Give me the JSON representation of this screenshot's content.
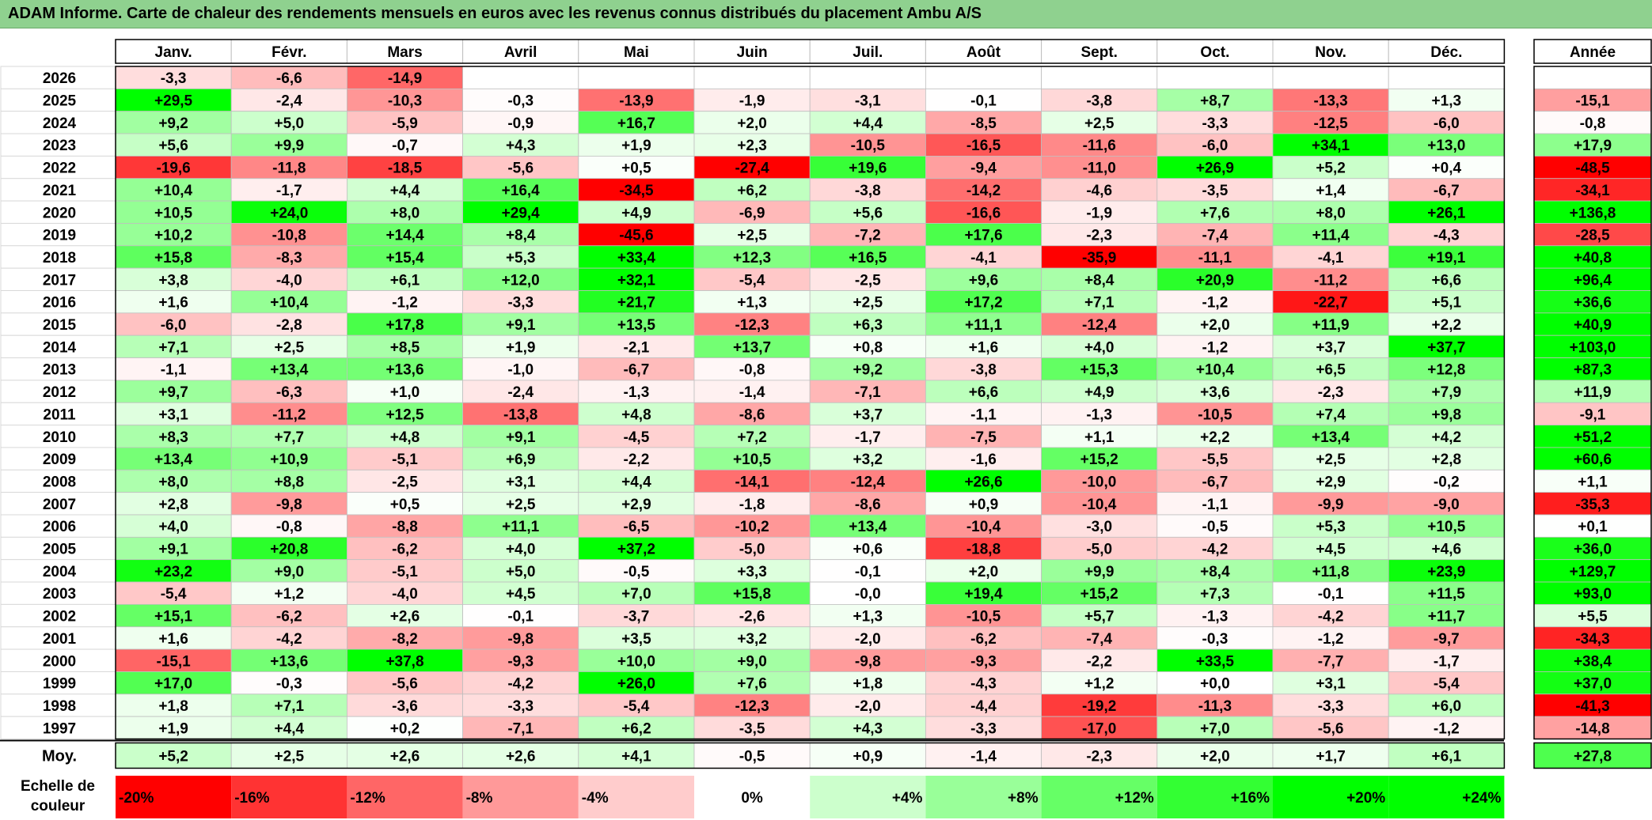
{
  "title": "ADAM Informe. Carte de chaleur des rendements mensuels en euros avec les revenus connus distribués du placement Ambu A/S",
  "chart_data": {
    "type": "heatmap",
    "title": "ADAM Informe. Carte de chaleur des rendements mensuels en euros avec les revenus connus distribués du placement Ambu A/S",
    "columns": [
      "Janv.",
      "Févr.",
      "Mars",
      "Avril",
      "Mai",
      "Juin",
      "Juil.",
      "Août",
      "Sept.",
      "Oct.",
      "Nov.",
      "Déc."
    ],
    "year_header": "Année",
    "rows": [
      {
        "year": "2026",
        "values": [
          "-3,3",
          "-6,6",
          "-14,9",
          "",
          "",
          "",
          "",
          "",
          "",
          "",
          "",
          ""
        ],
        "annual": ""
      },
      {
        "year": "2025",
        "values": [
          "+29,5",
          "-2,4",
          "-10,3",
          "-0,3",
          "-13,9",
          "-1,9",
          "-3,1",
          "-0,1",
          "-3,8",
          "+8,7",
          "-13,3",
          "+1,3"
        ],
        "annual": "-15,1"
      },
      {
        "year": "2024",
        "values": [
          "+9,2",
          "+5,0",
          "-5,9",
          "-0,9",
          "+16,7",
          "+2,0",
          "+4,4",
          "-8,5",
          "+2,5",
          "-3,3",
          "-12,5",
          "-6,0"
        ],
        "annual": "-0,8"
      },
      {
        "year": "2023",
        "values": [
          "+5,6",
          "+9,9",
          "-0,7",
          "+4,3",
          "+1,9",
          "+2,3",
          "-10,5",
          "-16,5",
          "-11,6",
          "-6,0",
          "+34,1",
          "+13,0"
        ],
        "annual": "+17,9"
      },
      {
        "year": "2022",
        "values": [
          "-19,6",
          "-11,8",
          "-18,5",
          "-5,6",
          "+0,5",
          "-27,4",
          "+19,6",
          "-9,4",
          "-11,0",
          "+26,9",
          "+5,2",
          "+0,4"
        ],
        "annual": "-48,5"
      },
      {
        "year": "2021",
        "values": [
          "+10,4",
          "-1,7",
          "+4,4",
          "+16,4",
          "-34,5",
          "+6,2",
          "-3,8",
          "-14,2",
          "-4,6",
          "-3,5",
          "+1,4",
          "-6,7"
        ],
        "annual": "-34,1"
      },
      {
        "year": "2020",
        "values": [
          "+10,5",
          "+24,0",
          "+8,0",
          "+29,4",
          "+4,9",
          "-6,9",
          "+5,6",
          "-16,6",
          "-1,9",
          "+7,6",
          "+8,0",
          "+26,1"
        ],
        "annual": "+136,8"
      },
      {
        "year": "2019",
        "values": [
          "+10,2",
          "-10,8",
          "+14,4",
          "+8,4",
          "-45,6",
          "+2,5",
          "-7,2",
          "+17,6",
          "-2,3",
          "-7,4",
          "+11,4",
          "-4,3"
        ],
        "annual": "-28,5"
      },
      {
        "year": "2018",
        "values": [
          "+15,8",
          "-8,3",
          "+15,4",
          "+5,3",
          "+33,4",
          "+12,3",
          "+16,5",
          "-4,1",
          "-35,9",
          "-11,1",
          "-4,1",
          "+19,1"
        ],
        "annual": "+40,8"
      },
      {
        "year": "2017",
        "values": [
          "+3,8",
          "-4,0",
          "+6,1",
          "+12,0",
          "+32,1",
          "-5,4",
          "-2,5",
          "+9,6",
          "+8,4",
          "+20,9",
          "-11,2",
          "+6,6"
        ],
        "annual": "+96,4"
      },
      {
        "year": "2016",
        "values": [
          "+1,6",
          "+10,4",
          "-1,2",
          "-3,3",
          "+21,7",
          "+1,3",
          "+2,5",
          "+17,2",
          "+7,1",
          "-1,2",
          "-22,7",
          "+5,1"
        ],
        "annual": "+36,6"
      },
      {
        "year": "2015",
        "values": [
          "-6,0",
          "-2,8",
          "+17,8",
          "+9,1",
          "+13,5",
          "-12,3",
          "+6,3",
          "+11,1",
          "-12,4",
          "+2,0",
          "+11,9",
          "+2,2"
        ],
        "annual": "+40,9"
      },
      {
        "year": "2014",
        "values": [
          "+7,1",
          "+2,5",
          "+8,5",
          "+1,9",
          "-2,1",
          "+13,7",
          "+0,8",
          "+1,6",
          "+4,0",
          "-1,2",
          "+3,7",
          "+37,7"
        ],
        "annual": "+103,0"
      },
      {
        "year": "2013",
        "values": [
          "-1,1",
          "+13,4",
          "+13,6",
          "-1,0",
          "-6,7",
          "-0,8",
          "+9,2",
          "-3,8",
          "+15,3",
          "+10,4",
          "+6,5",
          "+12,8"
        ],
        "annual": "+87,3"
      },
      {
        "year": "2012",
        "values": [
          "+9,7",
          "-6,3",
          "+1,0",
          "-2,4",
          "-1,3",
          "-1,4",
          "-7,1",
          "+6,6",
          "+4,9",
          "+3,6",
          "-2,3",
          "+7,9"
        ],
        "annual": "+11,9"
      },
      {
        "year": "2011",
        "values": [
          "+3,1",
          "-11,2",
          "+12,5",
          "-13,8",
          "+4,8",
          "-8,6",
          "+3,7",
          "-1,1",
          "-1,3",
          "-10,5",
          "+7,4",
          "+9,8"
        ],
        "annual": "-9,1"
      },
      {
        "year": "2010",
        "values": [
          "+8,3",
          "+7,7",
          "+4,8",
          "+9,1",
          "-4,5",
          "+7,2",
          "-1,7",
          "-7,5",
          "+1,1",
          "+2,2",
          "+13,4",
          "+4,2"
        ],
        "annual": "+51,2"
      },
      {
        "year": "2009",
        "values": [
          "+13,4",
          "+10,9",
          "-5,1",
          "+6,9",
          "-2,2",
          "+10,5",
          "+3,2",
          "-1,6",
          "+15,2",
          "-5,5",
          "+2,5",
          "+2,8"
        ],
        "annual": "+60,6"
      },
      {
        "year": "2008",
        "values": [
          "+8,0",
          "+8,8",
          "-2,5",
          "+3,1",
          "+4,4",
          "-14,1",
          "-12,4",
          "+26,6",
          "-10,0",
          "-6,7",
          "+2,9",
          "-0,2"
        ],
        "annual": "+1,1"
      },
      {
        "year": "2007",
        "values": [
          "+2,8",
          "-9,8",
          "+0,5",
          "+2,5",
          "+2,9",
          "-1,8",
          "-8,6",
          "+0,9",
          "-10,4",
          "-1,1",
          "-9,9",
          "-9,0"
        ],
        "annual": "-35,3"
      },
      {
        "year": "2006",
        "values": [
          "+4,0",
          "-0,8",
          "-8,8",
          "+11,1",
          "-6,5",
          "-10,2",
          "+13,4",
          "-10,4",
          "-3,0",
          "-0,5",
          "+5,3",
          "+10,5"
        ],
        "annual": "+0,1"
      },
      {
        "year": "2005",
        "values": [
          "+9,1",
          "+20,8",
          "-6,2",
          "+4,0",
          "+37,2",
          "-5,0",
          "+0,6",
          "-18,8",
          "-5,0",
          "-4,2",
          "+4,5",
          "+4,6"
        ],
        "annual": "+36,0"
      },
      {
        "year": "2004",
        "values": [
          "+23,2",
          "+9,0",
          "-5,1",
          "+5,0",
          "-0,5",
          "+3,3",
          "-0,1",
          "+2,0",
          "+9,9",
          "+8,4",
          "+11,8",
          "+23,9"
        ],
        "annual": "+129,7"
      },
      {
        "year": "2003",
        "values": [
          "-5,4",
          "+1,2",
          "-4,0",
          "+4,5",
          "+7,0",
          "+15,8",
          "-0,0",
          "+19,4",
          "+15,2",
          "+7,3",
          "-0,1",
          "+11,5"
        ],
        "annual": "+93,0"
      },
      {
        "year": "2002",
        "values": [
          "+15,1",
          "-6,2",
          "+2,6",
          "-0,1",
          "-3,7",
          "-2,6",
          "+1,3",
          "-10,5",
          "+5,7",
          "-1,3",
          "-4,2",
          "+11,7"
        ],
        "annual": "+5,5"
      },
      {
        "year": "2001",
        "values": [
          "+1,6",
          "-4,2",
          "-8,2",
          "-9,8",
          "+3,5",
          "+3,2",
          "-2,0",
          "-6,2",
          "-7,4",
          "-0,3",
          "-1,2",
          "-9,7"
        ],
        "annual": "-34,3"
      },
      {
        "year": "2000",
        "values": [
          "-15,1",
          "+13,6",
          "+37,8",
          "-9,3",
          "+10,0",
          "+9,0",
          "-9,8",
          "-9,3",
          "-2,2",
          "+33,5",
          "-7,7",
          "-1,7"
        ],
        "annual": "+38,4"
      },
      {
        "year": "1999",
        "values": [
          "+17,0",
          "-0,3",
          "-5,6",
          "-4,2",
          "+26,0",
          "+7,6",
          "+1,8",
          "-4,3",
          "+1,2",
          "+0,0",
          "+3,1",
          "-5,4"
        ],
        "annual": "+37,0"
      },
      {
        "year": "1998",
        "values": [
          "+1,8",
          "+7,1",
          "-3,6",
          "-3,3",
          "-5,4",
          "-12,3",
          "-2,0",
          "-4,4",
          "-19,2",
          "-11,3",
          "-3,3",
          "+6,0"
        ],
        "annual": "-41,3"
      },
      {
        "year": "1997",
        "values": [
          "+1,9",
          "+4,4",
          "+0,2",
          "-7,1",
          "+6,2",
          "-3,5",
          "+4,3",
          "-3,3",
          "-17,0",
          "+7,0",
          "-5,6",
          "-1,2"
        ],
        "annual": "-14,8"
      }
    ],
    "average_row": {
      "label": "Moy.",
      "values": [
        "+5,2",
        "+2,5",
        "+2,6",
        "+2,6",
        "+4,1",
        "-0,5",
        "+0,9",
        "-1,4",
        "-2,3",
        "+2,0",
        "+1,7",
        "+6,1"
      ],
      "annual": "+27,8"
    },
    "scale": {
      "label_line1": "Echelle de",
      "label_line2": "couleur",
      "steps": [
        "-20%",
        "-16%",
        "-12%",
        "-8%",
        "-4%",
        "0%",
        "+4%",
        "+8%",
        "+12%",
        "+16%",
        "+20%",
        "+24%"
      ]
    },
    "colors": {
      "negative_max": "#ff0000",
      "neutral": "#ffffff",
      "positive_max": "#00ff00",
      "title_bar": "#8fd18f"
    }
  }
}
